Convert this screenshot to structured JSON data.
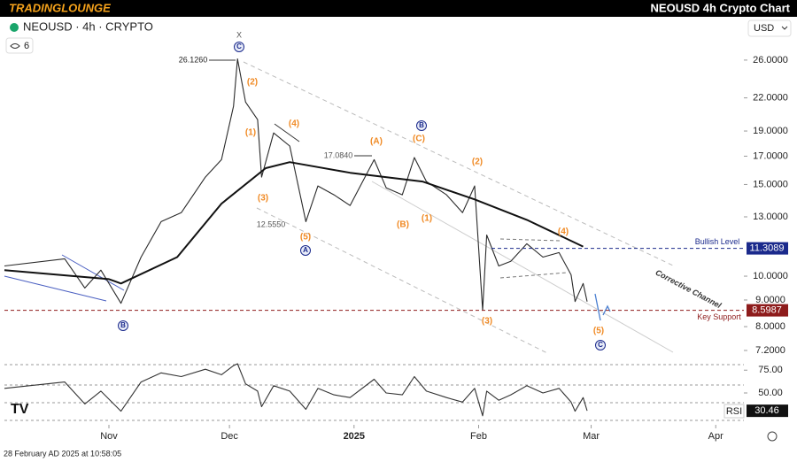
{
  "header": {
    "brand": "TRADINGLOUNGE",
    "title": "NEOUSD 4h Crypto Chart"
  },
  "symbol": "NEOUSD · 4h · CRYPTO",
  "indicator_count": 6,
  "currency": "USD",
  "timestamp": "28 February AD 2025 at 10:58:05",
  "chart_data": [
    {
      "type": "line",
      "log_scale": true,
      "xlim": [
        "2024-10-06",
        "2025-04-08"
      ],
      "xticks": [
        {
          "value": "2024-11-01",
          "label": "Nov"
        },
        {
          "value": "2024-12-01",
          "label": "Dec"
        },
        {
          "value": "2025-01-01",
          "label": "2025"
        },
        {
          "value": "2025-02-01",
          "label": "Feb"
        },
        {
          "value": "2025-03-01",
          "label": "Mar"
        },
        {
          "value": "2025-04-01",
          "label": "Apr"
        }
      ],
      "ylim": [
        6.95,
        29
      ],
      "yticks": [
        {
          "value": 26,
          "label": "26.0000"
        },
        {
          "value": 22,
          "label": "22.0000"
        },
        {
          "value": 19,
          "label": "19.0000"
        },
        {
          "value": 17,
          "label": "17.0000"
        },
        {
          "value": 15,
          "label": "15.0000"
        },
        {
          "value": 13,
          "label": "13.0000"
        },
        {
          "value": 10,
          "label": "10.0000"
        },
        {
          "value": 9,
          "label": "9.0000"
        },
        {
          "value": 8,
          "label": "8.0000"
        },
        {
          "value": 7.2,
          "label": "7.2000"
        }
      ],
      "series": [
        {
          "color": "#2a2a2a",
          "x": [
            "2024-10-06",
            "2024-10-21",
            "2024-10-26",
            "2024-10-30",
            "2024-11-04",
            "2024-11-09",
            "2024-11-14",
            "2024-11-19",
            "2024-11-25",
            "2024-11-29",
            "2024-12-02",
            "2024-12-03",
            "2024-12-05",
            "2024-12-08",
            "2024-12-09",
            "2024-12-12",
            "2024-12-16",
            "2024-12-20",
            "2024-12-23",
            "2024-12-27",
            "2024-12-31",
            "2025-01-06",
            "2025-01-09",
            "2025-01-13",
            "2025-01-16",
            "2025-01-19",
            "2025-01-24",
            "2025-01-28",
            "2025-01-31",
            "2025-02-02",
            "2025-02-03",
            "2025-02-06",
            "2025-02-09",
            "2025-02-13",
            "2025-02-17",
            "2025-02-21",
            "2025-02-24",
            "2025-02-25",
            "2025-02-27",
            "2025-02-28"
          ],
          "values": [
            10.46,
            10.8,
            9.49,
            10.27,
            8.87,
            10.88,
            12.73,
            13.24,
            15.5,
            16.74,
            21.2,
            26.13,
            21.6,
            19.98,
            15.5,
            18.84,
            17.78,
            12.73,
            14.9,
            14.33,
            13.67,
            16.74,
            14.78,
            14.33,
            16.9,
            15.2,
            14.33,
            13.24,
            14.9,
            8.6,
            12.0,
            10.46,
            10.68,
            11.54,
            10.88,
            11.1,
            10.06,
            8.94,
            9.68,
            8.94
          ]
        },
        {
          "color": "#111111",
          "x": [
            "2024-10-06",
            "2024-11-01",
            "2024-11-04",
            "2024-11-18",
            "2024-11-29",
            "2024-12-10",
            "2024-12-16",
            "2024-12-31",
            "2025-01-18",
            "2025-01-31",
            "2025-02-13",
            "2025-02-27"
          ],
          "values": [
            10.27,
            9.87,
            9.68,
            10.88,
            13.78,
            16.12,
            16.56,
            15.8,
            15.2,
            14.04,
            12.83,
            11.4
          ]
        }
      ],
      "levels": [
        {
          "label": "Bullish Level",
          "value": 11.3089,
          "color": "#1b2a8c"
        },
        {
          "label": "Key Support",
          "value": 8.5987,
          "color": "#8e1c1c"
        }
      ],
      "annotations": [
        "X",
        "C",
        "26.1260",
        "(2)",
        "(1)",
        "(4)",
        "(3)",
        "17.0840",
        "(A)",
        "B",
        "(C)",
        "12.5550",
        "(5)",
        "A",
        "(B)",
        "(1)",
        "(2)",
        "(4)",
        "(3)",
        "(5)",
        "C",
        "B",
        "Corrective Channel"
      ]
    },
    {
      "type": "line",
      "title": "RSI",
      "ylim": [
        17,
        83
      ],
      "yticks": [
        {
          "value": 75,
          "label": "75.00"
        },
        {
          "value": 50,
          "label": "50.00"
        }
      ],
      "series": [
        {
          "color": "#333333",
          "x": [
            "2024-10-06",
            "2024-10-21",
            "2024-10-26",
            "2024-10-30",
            "2024-11-04",
            "2024-11-09",
            "2024-11-14",
            "2024-11-19",
            "2024-11-25",
            "2024-11-29",
            "2024-12-02",
            "2024-12-03",
            "2024-12-05",
            "2024-12-08",
            "2024-12-09",
            "2024-12-12",
            "2024-12-16",
            "2024-12-20",
            "2024-12-23",
            "2024-12-27",
            "2024-12-31",
            "2025-01-06",
            "2025-01-09",
            "2025-01-13",
            "2025-01-16",
            "2025-01-19",
            "2025-01-24",
            "2025-01-28",
            "2025-01-31",
            "2025-02-02",
            "2025-02-03",
            "2025-02-06",
            "2025-02-09",
            "2025-02-13",
            "2025-02-17",
            "2025-02-21",
            "2025-02-24",
            "2025-02-25",
            "2025-02-27",
            "2025-02-28"
          ],
          "values": [
            55,
            62,
            38,
            52,
            30,
            62,
            72,
            68,
            76,
            70,
            80,
            82,
            60,
            52,
            35,
            58,
            52,
            32,
            55,
            48,
            45,
            65,
            50,
            48,
            68,
            52,
            45,
            40,
            55,
            25,
            52,
            42,
            48,
            58,
            50,
            55,
            40,
            30,
            45,
            30.46
          ]
        }
      ]
    }
  ]
}
